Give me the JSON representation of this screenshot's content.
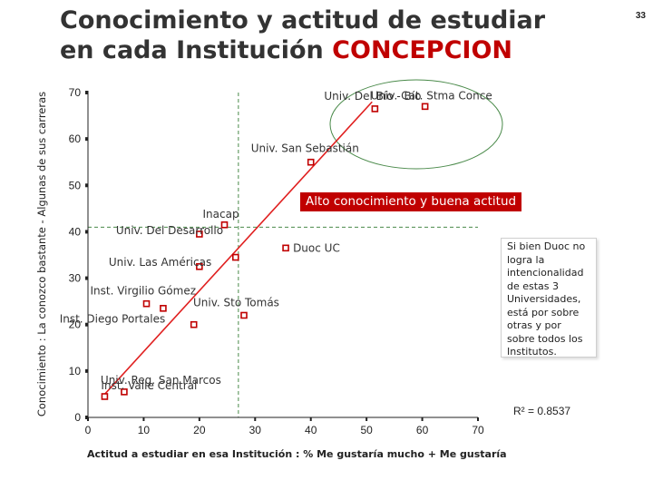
{
  "page": {
    "title_prefix": "Conocimiento y actitud de estudiar en cada Institución ",
    "title_highlight": "CONCEPCION",
    "page_number": "33"
  },
  "annotations": {
    "banner": "Alto conocimiento y buena actitud",
    "callout": "Si bien Duoc no logra la intencionalidad de estas 3 Universidades, está por sobre otras y por sobre todos los Institutos.",
    "r_squared": "R² = 0.8537"
  },
  "chart_data": {
    "type": "scatter",
    "xlabel": "Actitud a estudiar en esa Institución : % Me gustaría mucho + Me gustaría",
    "ylabel": "Conocimiento : La conozco bastante - Algunas de sus carreras",
    "xlim": [
      0,
      70
    ],
    "ylim": [
      0,
      70
    ],
    "x_ticks": [
      "0",
      "10",
      "20",
      "30",
      "40",
      "50",
      "60",
      "70"
    ],
    "y_ticks": [
      "0",
      "10",
      "20",
      "30",
      "40",
      "50",
      "60",
      "70"
    ],
    "reference_lines": {
      "x": 27,
      "y": 41
    },
    "trendline": {
      "from": [
        3,
        5
      ],
      "to": [
        51,
        68
      ]
    },
    "colors": {
      "marker": "#c00000",
      "trendline": "#e02020",
      "reference": "#4a8a4a",
      "ellipse": "#4a8a4a",
      "banner": "#c00000"
    },
    "points": [
      {
        "label": "Univ. Del Bío - Bío",
        "x": 51.5,
        "y": 66.5
      },
      {
        "label": "Univ. Cat. Stma Conce",
        "x": 60.5,
        "y": 67.0
      },
      {
        "label": "Univ. San Sebastián",
        "x": 40.0,
        "y": 55.0
      },
      {
        "label": "Inacap",
        "x": 24.5,
        "y": 41.5
      },
      {
        "label": "Univ. Del Desarrollo",
        "x": 20.0,
        "y": 39.5
      },
      {
        "label": "Duoc UC",
        "x": 35.5,
        "y": 36.5
      },
      {
        "label": "",
        "x": 26.5,
        "y": 34.5
      },
      {
        "label": "Univ. Las Américas",
        "x": 20.0,
        "y": 32.5
      },
      {
        "label": "Inst. Virgilio Gómez",
        "x": 10.5,
        "y": 24.5
      },
      {
        "label": "",
        "x": 13.5,
        "y": 23.5
      },
      {
        "label": "Univ. Sto Tomás",
        "x": 28.0,
        "y": 22.0
      },
      {
        "label": "Inst. Diego Portales",
        "x": 19.0,
        "y": 20.0
      },
      {
        "label": "Univ. Reg. San Marcos",
        "x": 6.5,
        "y": 5.5
      },
      {
        "label": "Inst. Valle Central",
        "x": 3.0,
        "y": 4.5
      }
    ]
  }
}
